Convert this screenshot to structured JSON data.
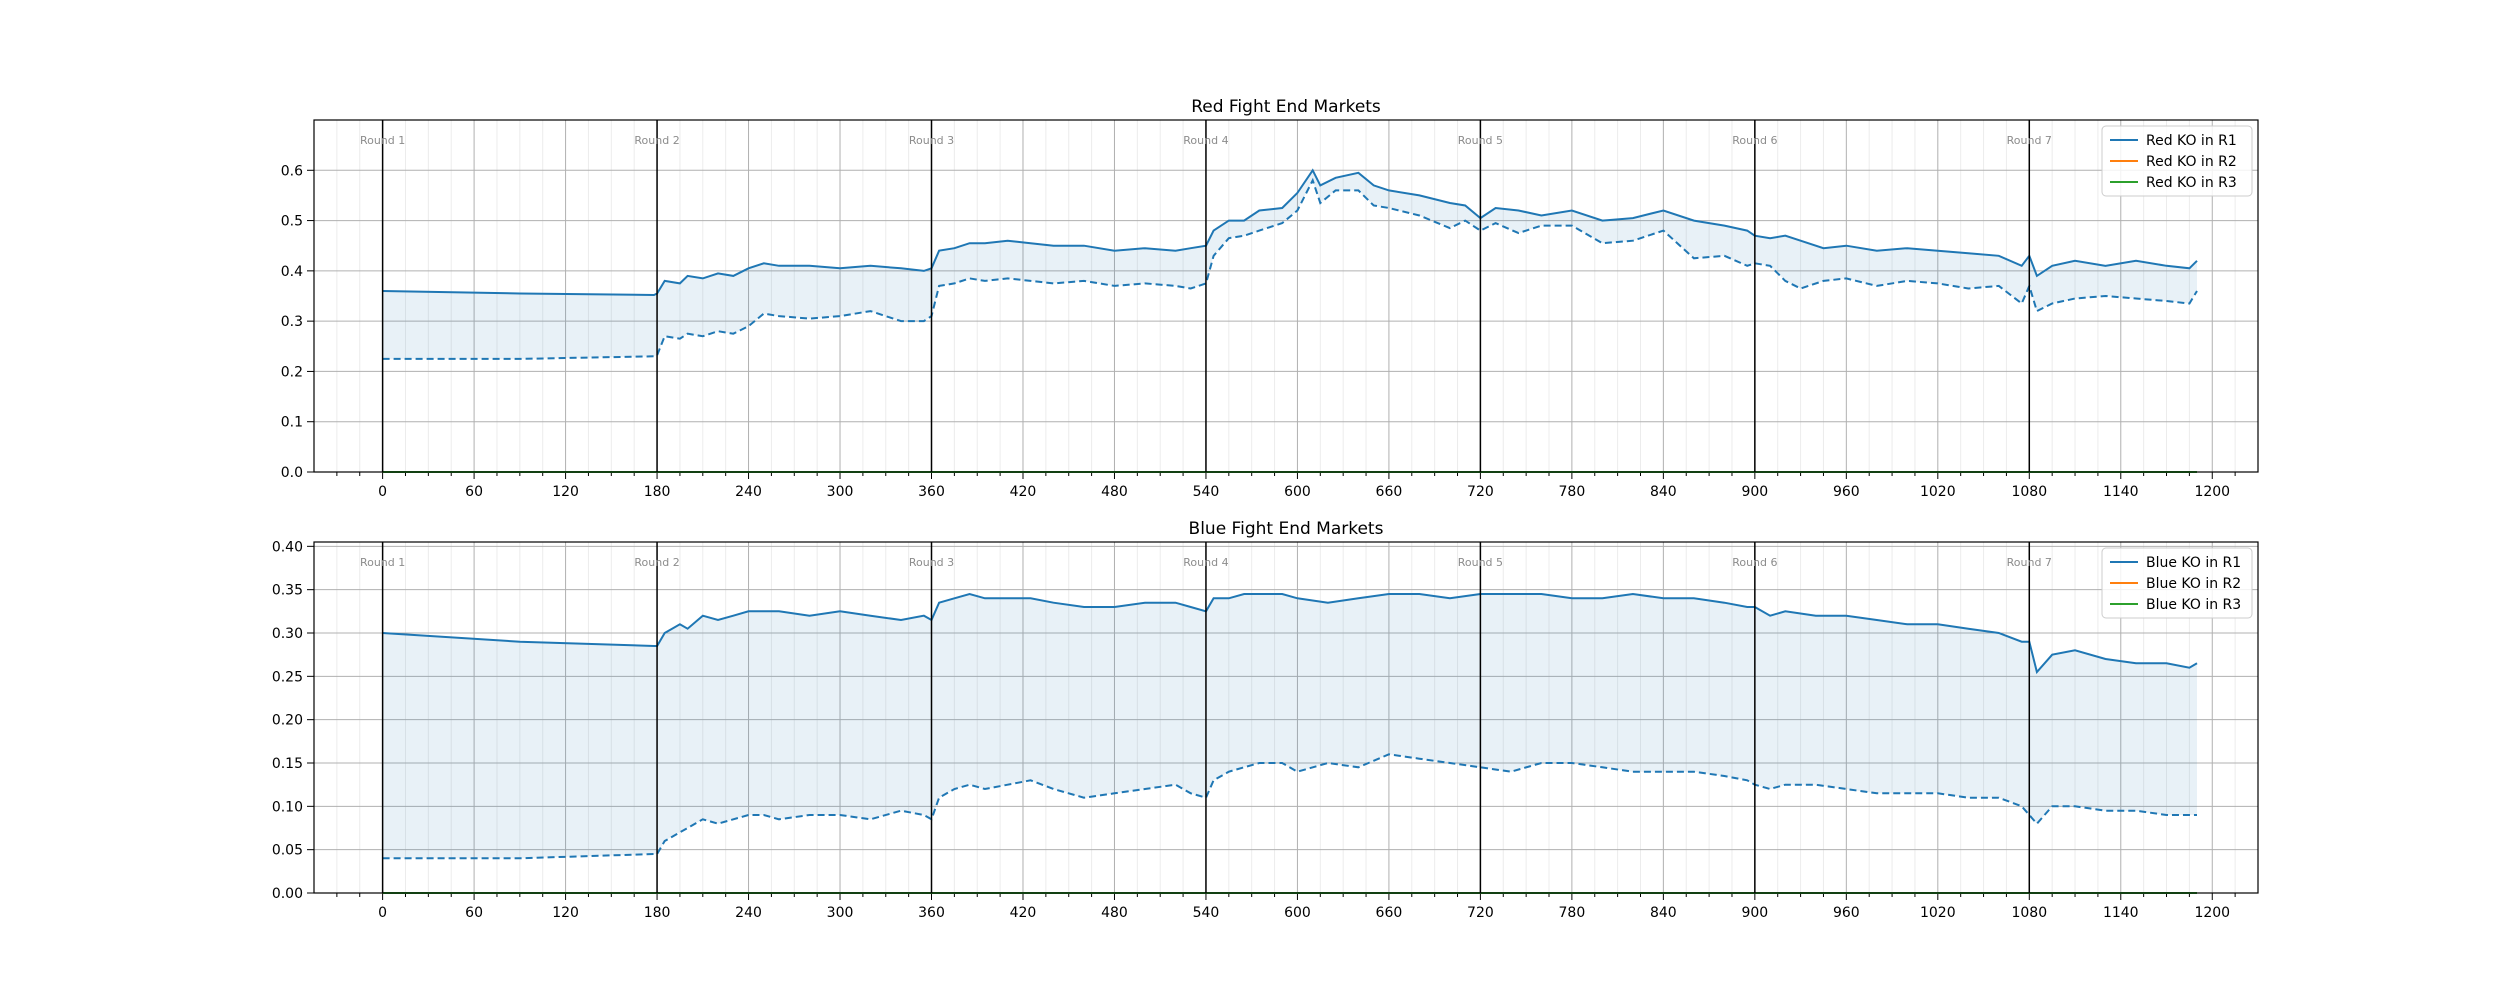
{
  "chart_data": [
    {
      "type": "line",
      "title": "Red Fight End Markets",
      "xlabel": "",
      "ylabel": "",
      "xlim": [
        -45,
        1230
      ],
      "ylim": [
        0,
        0.7
      ],
      "x_ticks": [
        0,
        60,
        120,
        180,
        240,
        300,
        360,
        420,
        480,
        540,
        600,
        660,
        720,
        780,
        840,
        900,
        960,
        1020,
        1080,
        1140,
        1200
      ],
      "y_ticks": [
        0.0,
        0.1,
        0.2,
        0.3,
        0.4,
        0.5,
        0.6
      ],
      "y_tick_labels": [
        "0.0",
        "0.1",
        "0.2",
        "0.3",
        "0.4",
        "0.5",
        "0.6"
      ],
      "grid": true,
      "legend_position": "top-right",
      "rounds": [
        {
          "label": "Round 1",
          "x": 0
        },
        {
          "label": "Round 2",
          "x": 180
        },
        {
          "label": "Round 3",
          "x": 360
        },
        {
          "label": "Round 4",
          "x": 540
        },
        {
          "label": "Round 5",
          "x": 720
        },
        {
          "label": "Round 6",
          "x": 900
        },
        {
          "label": "Round 7",
          "x": 1080
        }
      ],
      "series": [
        {
          "name": "Red KO in R1",
          "color": "#1f77b4",
          "upper": {
            "x": [
              0,
              90,
              178,
              180,
              185,
              195,
              200,
              210,
              220,
              230,
              240,
              250,
              260,
              280,
              300,
              320,
              340,
              355,
              360,
              365,
              375,
              385,
              395,
              410,
              425,
              440,
              460,
              480,
              500,
              520,
              530,
              540,
              545,
              555,
              565,
              575,
              590,
              600,
              610,
              615,
              625,
              640,
              650,
              660,
              680,
              700,
              710,
              720,
              730,
              745,
              760,
              780,
              800,
              820,
              840,
              860,
              880,
              895,
              900,
              910,
              920,
              930,
              945,
              960,
              980,
              1000,
              1020,
              1040,
              1060,
              1075,
              1080,
              1085,
              1095,
              1110,
              1130,
              1150,
              1170,
              1185,
              1190
            ],
            "y": [
              0.36,
              0.355,
              0.352,
              0.355,
              0.38,
              0.375,
              0.39,
              0.385,
              0.395,
              0.39,
              0.405,
              0.415,
              0.41,
              0.41,
              0.405,
              0.41,
              0.405,
              0.4,
              0.405,
              0.44,
              0.445,
              0.455,
              0.455,
              0.46,
              0.455,
              0.45,
              0.45,
              0.44,
              0.445,
              0.44,
              0.445,
              0.45,
              0.48,
              0.5,
              0.5,
              0.52,
              0.525,
              0.555,
              0.6,
              0.57,
              0.585,
              0.595,
              0.57,
              0.56,
              0.55,
              0.535,
              0.53,
              0.505,
              0.525,
              0.52,
              0.51,
              0.52,
              0.5,
              0.505,
              0.52,
              0.5,
              0.49,
              0.48,
              0.47,
              0.465,
              0.47,
              0.46,
              0.445,
              0.45,
              0.44,
              0.445,
              0.44,
              0.435,
              0.43,
              0.41,
              0.43,
              0.39,
              0.41,
              0.42,
              0.41,
              0.42,
              0.41,
              0.405,
              0.42
            ]
          },
          "lower": {
            "x": [
              0,
              90,
              178,
              180,
              185,
              195,
              200,
              210,
              220,
              230,
              240,
              250,
              260,
              280,
              300,
              320,
              340,
              355,
              360,
              365,
              375,
              385,
              395,
              410,
              425,
              440,
              460,
              480,
              500,
              520,
              530,
              540,
              545,
              555,
              565,
              575,
              590,
              600,
              610,
              615,
              625,
              640,
              650,
              660,
              680,
              700,
              710,
              720,
              730,
              745,
              760,
              780,
              800,
              820,
              840,
              860,
              880,
              895,
              900,
              910,
              920,
              930,
              945,
              960,
              980,
              1000,
              1020,
              1040,
              1060,
              1075,
              1080,
              1085,
              1095,
              1110,
              1130,
              1150,
              1170,
              1185,
              1190
            ],
            "y": [
              0.225,
              0.225,
              0.23,
              0.232,
              0.27,
              0.265,
              0.275,
              0.27,
              0.28,
              0.275,
              0.29,
              0.315,
              0.31,
              0.305,
              0.31,
              0.32,
              0.3,
              0.3,
              0.31,
              0.37,
              0.375,
              0.385,
              0.38,
              0.385,
              0.38,
              0.375,
              0.38,
              0.37,
              0.375,
              0.37,
              0.365,
              0.375,
              0.43,
              0.465,
              0.47,
              0.48,
              0.495,
              0.52,
              0.58,
              0.535,
              0.56,
              0.56,
              0.53,
              0.525,
              0.51,
              0.485,
              0.5,
              0.48,
              0.495,
              0.475,
              0.49,
              0.49,
              0.455,
              0.46,
              0.48,
              0.425,
              0.43,
              0.41,
              0.415,
              0.41,
              0.38,
              0.365,
              0.38,
              0.385,
              0.37,
              0.38,
              0.375,
              0.365,
              0.37,
              0.335,
              0.37,
              0.32,
              0.335,
              0.345,
              0.35,
              0.345,
              0.34,
              0.335,
              0.36
            ]
          }
        },
        {
          "name": "Red KO in R2",
          "color": "#ff7f0e",
          "x": [
            0,
            1190
          ],
          "y": [
            0,
            0
          ]
        },
        {
          "name": "Red KO in R3",
          "color": "#2ca02c",
          "x": [
            0,
            1190
          ],
          "y": [
            0,
            0
          ]
        }
      ]
    },
    {
      "type": "line",
      "title": "Blue Fight End Markets",
      "xlabel": "",
      "ylabel": "",
      "xlim": [
        -45,
        1230
      ],
      "ylim": [
        0,
        0.405
      ],
      "x_ticks": [
        0,
        60,
        120,
        180,
        240,
        300,
        360,
        420,
        480,
        540,
        600,
        660,
        720,
        780,
        840,
        900,
        960,
        1020,
        1080,
        1140,
        1200
      ],
      "y_ticks": [
        0.0,
        0.05,
        0.1,
        0.15,
        0.2,
        0.25,
        0.3,
        0.35,
        0.4
      ],
      "y_tick_labels": [
        "0.00",
        "0.05",
        "0.10",
        "0.15",
        "0.20",
        "0.25",
        "0.30",
        "0.35",
        "0.40"
      ],
      "grid": true,
      "legend_position": "top-right",
      "rounds": [
        {
          "label": "Round 1",
          "x": 0
        },
        {
          "label": "Round 2",
          "x": 180
        },
        {
          "label": "Round 3",
          "x": 360
        },
        {
          "label": "Round 4",
          "x": 540
        },
        {
          "label": "Round 5",
          "x": 720
        },
        {
          "label": "Round 6",
          "x": 900
        },
        {
          "label": "Round 7",
          "x": 1080
        }
      ],
      "series": [
        {
          "name": "Blue KO in R1",
          "color": "#1f77b4",
          "upper": {
            "x": [
              0,
              90,
              178,
              180,
              185,
              195,
              200,
              210,
              220,
              230,
              240,
              250,
              260,
              280,
              300,
              320,
              340,
              355,
              360,
              365,
              375,
              385,
              395,
              410,
              425,
              440,
              460,
              480,
              500,
              520,
              530,
              540,
              545,
              555,
              565,
              575,
              590,
              600,
              620,
              640,
              660,
              680,
              700,
              720,
              740,
              760,
              780,
              800,
              820,
              840,
              860,
              880,
              895,
              900,
              910,
              920,
              940,
              960,
              980,
              1000,
              1020,
              1040,
              1060,
              1075,
              1080,
              1085,
              1095,
              1110,
              1130,
              1150,
              1170,
              1185,
              1190
            ],
            "y": [
              0.3,
              0.29,
              0.285,
              0.285,
              0.3,
              0.31,
              0.305,
              0.32,
              0.315,
              0.32,
              0.325,
              0.325,
              0.325,
              0.32,
              0.325,
              0.32,
              0.315,
              0.32,
              0.315,
              0.335,
              0.34,
              0.345,
              0.34,
              0.34,
              0.34,
              0.335,
              0.33,
              0.33,
              0.335,
              0.335,
              0.33,
              0.325,
              0.34,
              0.34,
              0.345,
              0.345,
              0.345,
              0.34,
              0.335,
              0.34,
              0.345,
              0.345,
              0.34,
              0.345,
              0.345,
              0.345,
              0.34,
              0.34,
              0.345,
              0.34,
              0.34,
              0.335,
              0.33,
              0.33,
              0.32,
              0.325,
              0.32,
              0.32,
              0.315,
              0.31,
              0.31,
              0.305,
              0.3,
              0.29,
              0.29,
              0.255,
              0.275,
              0.28,
              0.27,
              0.265,
              0.265,
              0.26,
              0.265
            ]
          },
          "lower": {
            "x": [
              0,
              90,
              178,
              180,
              185,
              195,
              200,
              210,
              220,
              230,
              240,
              250,
              260,
              280,
              300,
              320,
              340,
              355,
              360,
              365,
              375,
              385,
              395,
              410,
              425,
              440,
              460,
              480,
              500,
              520,
              530,
              540,
              545,
              555,
              565,
              575,
              590,
              600,
              620,
              640,
              660,
              680,
              700,
              720,
              740,
              760,
              780,
              800,
              820,
              840,
              860,
              880,
              895,
              900,
              910,
              920,
              940,
              960,
              980,
              1000,
              1020,
              1040,
              1060,
              1075,
              1080,
              1085,
              1095,
              1110,
              1130,
              1150,
              1170,
              1185,
              1190
            ],
            "y": [
              0.04,
              0.04,
              0.045,
              0.045,
              0.06,
              0.07,
              0.075,
              0.085,
              0.08,
              0.085,
              0.09,
              0.09,
              0.085,
              0.09,
              0.09,
              0.085,
              0.095,
              0.09,
              0.085,
              0.11,
              0.12,
              0.125,
              0.12,
              0.125,
              0.13,
              0.12,
              0.11,
              0.115,
              0.12,
              0.125,
              0.115,
              0.11,
              0.13,
              0.14,
              0.145,
              0.15,
              0.15,
              0.14,
              0.15,
              0.145,
              0.16,
              0.155,
              0.15,
              0.145,
              0.14,
              0.15,
              0.15,
              0.145,
              0.14,
              0.14,
              0.14,
              0.135,
              0.13,
              0.125,
              0.12,
              0.125,
              0.125,
              0.12,
              0.115,
              0.115,
              0.115,
              0.11,
              0.11,
              0.1,
              0.09,
              0.08,
              0.1,
              0.1,
              0.095,
              0.095,
              0.09,
              0.09,
              0.09
            ]
          }
        },
        {
          "name": "Blue KO in R2",
          "color": "#ff7f0e",
          "x": [
            0,
            1190
          ],
          "y": [
            0,
            0
          ]
        },
        {
          "name": "Blue KO in R3",
          "color": "#2ca02c",
          "x": [
            0,
            1190
          ],
          "y": [
            0,
            0
          ]
        }
      ]
    }
  ]
}
